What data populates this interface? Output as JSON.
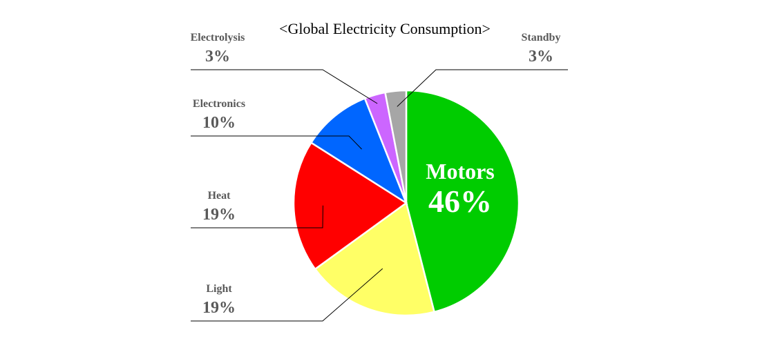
{
  "chart_data": {
    "type": "pie",
    "title": "<Global Electricity Consumption>",
    "start_angle_deg": 0,
    "direction": "clockwise",
    "slices": [
      {
        "label": "Motors",
        "value": 46,
        "display": "46%",
        "color": "#00cc00",
        "label_position": "inside"
      },
      {
        "label": "Light",
        "value": 19,
        "display": "19%",
        "color": "#ffff66",
        "label_position": "outside-left"
      },
      {
        "label": "Heat",
        "value": 19,
        "display": "19%",
        "color": "#ff0000",
        "label_position": "outside-left"
      },
      {
        "label": "Electronics",
        "value": 10,
        "display": "10%",
        "color": "#0066ff",
        "label_position": "outside-left"
      },
      {
        "label": "Electrolysis",
        "value": 3,
        "display": "3%",
        "color": "#cc66ff",
        "label_position": "outside-left"
      },
      {
        "label": "Standby",
        "value": 3,
        "display": "3%",
        "color": "#a6a6a6",
        "label_position": "outside-right"
      }
    ]
  }
}
